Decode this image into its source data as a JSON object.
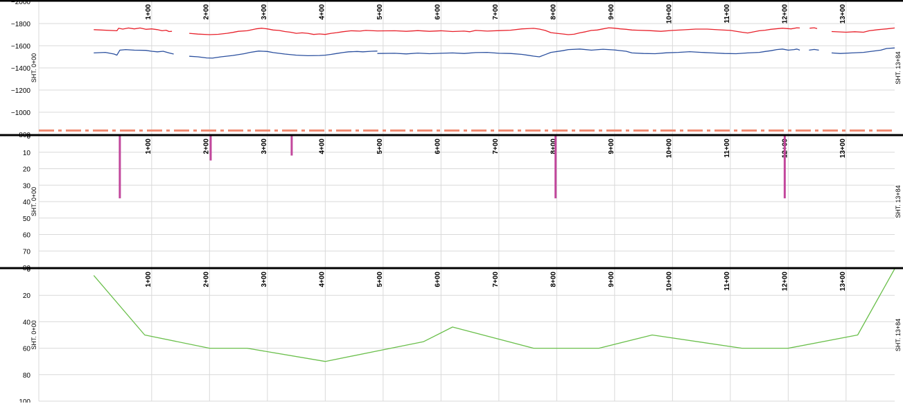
{
  "colors": {
    "background": "#ffffff",
    "grid": "#d9d9d9",
    "separator": "#000000",
    "axis_text": "#000000",
    "series_upper": "#e8202a",
    "series_lower": "#2a4f9e",
    "reference_line": "#f08a70",
    "impulse": "#c2479c",
    "profile": "#6abf4b"
  },
  "stations": {
    "ticks": [
      100,
      200,
      300,
      400,
      500,
      600,
      700,
      800,
      900,
      1000,
      1100,
      1200,
      1300
    ],
    "labels": [
      "1+00",
      "2+00",
      "3+00",
      "4+00",
      "5+00",
      "6+00",
      "7+00",
      "8+00",
      "9+00",
      "10+00",
      "11+00",
      "12+00",
      "13+00"
    ],
    "start_label": "SHT. 0+00",
    "end_label": "SHT. 13+84"
  },
  "chart_data": [
    {
      "type": "line",
      "ylim": [
        -2000,
        -800
      ],
      "y_ticks": [
        -2000,
        -1800,
        -1600,
        -1400,
        -1200,
        -1000,
        -800
      ],
      "y_tick_labels": [
        "−2000",
        "−1800",
        "−1600",
        "−1400",
        "−1200",
        "−1000",
        "−800"
      ],
      "xlim": [
        -95,
        1384
      ],
      "series": [
        {
          "key": "upper",
          "color": "#e8202a",
          "points": [
            [
              0,
              -1745
            ],
            [
              40,
              -1735
            ],
            [
              43,
              -1758
            ],
            [
              50,
              -1750
            ],
            [
              60,
              -1760
            ],
            [
              70,
              -1752
            ],
            [
              80,
              -1760
            ],
            [
              90,
              -1748
            ],
            [
              100,
              -1752
            ],
            [
              110,
              -1745
            ],
            [
              118,
              -1735
            ],
            [
              125,
              -1740
            ],
            [
              130,
              -1728
            ],
            [
              135,
              -1730
            ],
            [
              null,
              null
            ],
            [
              165,
              -1712
            ],
            [
              180,
              -1705
            ],
            [
              200,
              -1700
            ],
            [
              215,
              -1703
            ],
            [
              230,
              -1712
            ],
            [
              240,
              -1720
            ],
            [
              250,
              -1730
            ],
            [
              265,
              -1735
            ],
            [
              280,
              -1752
            ],
            [
              290,
              -1758
            ],
            [
              300,
              -1752
            ],
            [
              310,
              -1742
            ],
            [
              320,
              -1738
            ],
            [
              330,
              -1728
            ],
            [
              340,
              -1722
            ],
            [
              350,
              -1712
            ],
            [
              360,
              -1716
            ],
            [
              370,
              -1712
            ],
            [
              380,
              -1702
            ],
            [
              390,
              -1706
            ],
            [
              400,
              -1702
            ],
            [
              410,
              -1712
            ],
            [
              420,
              -1718
            ],
            [
              430,
              -1726
            ],
            [
              445,
              -1735
            ],
            [
              460,
              -1732
            ],
            [
              470,
              -1738
            ],
            [
              490,
              -1734
            ],
            [
              null,
              null
            ],
            [
              490,
              -1734
            ],
            [
              520,
              -1735
            ],
            [
              540,
              -1730
            ],
            [
              560,
              -1736
            ],
            [
              580,
              -1730
            ],
            [
              600,
              -1735
            ],
            [
              620,
              -1728
            ],
            [
              640,
              -1732
            ],
            [
              650,
              -1726
            ],
            [
              660,
              -1738
            ],
            [
              680,
              -1732
            ],
            [
              700,
              -1736
            ],
            [
              720,
              -1740
            ],
            [
              740,
              -1752
            ],
            [
              760,
              -1757
            ],
            [
              770,
              -1750
            ],
            [
              780,
              -1738
            ],
            [
              790,
              -1718
            ],
            [
              800,
              -1712
            ],
            [
              810,
              -1706
            ],
            [
              820,
              -1700
            ],
            [
              830,
              -1704
            ],
            [
              840,
              -1716
            ],
            [
              850,
              -1726
            ],
            [
              860,
              -1738
            ],
            [
              870,
              -1742
            ],
            [
              880,
              -1752
            ],
            [
              890,
              -1762
            ],
            [
              900,
              -1758
            ],
            [
              910,
              -1752
            ],
            [
              920,
              -1748
            ],
            [
              930,
              -1742
            ],
            [
              940,
              -1740
            ],
            [
              960,
              -1736
            ],
            [
              980,
              -1730
            ],
            [
              1000,
              -1738
            ],
            [
              1020,
              -1744
            ],
            [
              1040,
              -1750
            ],
            [
              1060,
              -1750
            ],
            [
              1080,
              -1744
            ],
            [
              1100,
              -1738
            ],
            [
              1120,
              -1722
            ],
            [
              1130,
              -1715
            ],
            [
              1140,
              -1725
            ],
            [
              1150,
              -1735
            ],
            [
              1160,
              -1740
            ],
            [
              1170,
              -1748
            ],
            [
              1190,
              -1758
            ],
            [
              1205,
              -1752
            ],
            [
              1215,
              -1762
            ],
            [
              1220,
              -1760
            ],
            [
              null,
              null
            ],
            [
              1237,
              -1758
            ],
            [
              1245,
              -1762
            ],
            [
              1250,
              -1755
            ],
            [
              null,
              null
            ],
            [
              1275,
              -1728
            ],
            [
              1300,
              -1722
            ],
            [
              1315,
              -1726
            ],
            [
              1330,
              -1722
            ],
            [
              1340,
              -1735
            ],
            [
              1355,
              -1745
            ],
            [
              1370,
              -1752
            ],
            [
              1384,
              -1760
            ]
          ]
        },
        {
          "key": "lower",
          "color": "#2a4f9e",
          "points": [
            [
              0,
              -1535
            ],
            [
              20,
              -1540
            ],
            [
              35,
              -1525
            ],
            [
              40,
              -1515
            ],
            [
              45,
              -1560
            ],
            [
              55,
              -1565
            ],
            [
              70,
              -1560
            ],
            [
              90,
              -1558
            ],
            [
              100,
              -1550
            ],
            [
              110,
              -1545
            ],
            [
              120,
              -1550
            ],
            [
              130,
              -1535
            ],
            [
              138,
              -1525
            ],
            [
              null,
              null
            ],
            [
              165,
              -1505
            ],
            [
              180,
              -1500
            ],
            [
              195,
              -1490
            ],
            [
              205,
              -1488
            ],
            [
              220,
              -1500
            ],
            [
              240,
              -1512
            ],
            [
              260,
              -1528
            ],
            [
              270,
              -1540
            ],
            [
              285,
              -1552
            ],
            [
              300,
              -1548
            ],
            [
              310,
              -1538
            ],
            [
              330,
              -1525
            ],
            [
              350,
              -1515
            ],
            [
              370,
              -1510
            ],
            [
              390,
              -1512
            ],
            [
              400,
              -1515
            ],
            [
              410,
              -1522
            ],
            [
              420,
              -1530
            ],
            [
              430,
              -1538
            ],
            [
              440,
              -1545
            ],
            [
              455,
              -1548
            ],
            [
              465,
              -1545
            ],
            [
              480,
              -1550
            ],
            [
              490,
              -1552
            ],
            [
              null,
              null
            ],
            [
              490,
              -1530
            ],
            [
              520,
              -1532
            ],
            [
              540,
              -1526
            ],
            [
              560,
              -1534
            ],
            [
              580,
              -1528
            ],
            [
              600,
              -1532
            ],
            [
              620,
              -1535
            ],
            [
              640,
              -1530
            ],
            [
              660,
              -1538
            ],
            [
              680,
              -1540
            ],
            [
              700,
              -1532
            ],
            [
              720,
              -1530
            ],
            [
              740,
              -1522
            ],
            [
              760,
              -1506
            ],
            [
              770,
              -1500
            ],
            [
              780,
              -1520
            ],
            [
              790,
              -1540
            ],
            [
              810,
              -1555
            ],
            [
              820,
              -1565
            ],
            [
              840,
              -1570
            ],
            [
              860,
              -1560
            ],
            [
              880,
              -1568
            ],
            [
              900,
              -1562
            ],
            [
              920,
              -1550
            ],
            [
              930,
              -1535
            ],
            [
              950,
              -1530
            ],
            [
              970,
              -1528
            ],
            [
              990,
              -1536
            ],
            [
              1010,
              -1540
            ],
            [
              1030,
              -1546
            ],
            [
              1050,
              -1540
            ],
            [
              1070,
              -1535
            ],
            [
              1090,
              -1530
            ],
            [
              1110,
              -1528
            ],
            [
              1130,
              -1535
            ],
            [
              1150,
              -1540
            ],
            [
              1160,
              -1548
            ],
            [
              1170,
              -1555
            ],
            [
              1180,
              -1565
            ],
            [
              1190,
              -1570
            ],
            [
              1200,
              -1560
            ],
            [
              1210,
              -1565
            ],
            [
              1215,
              -1570
            ],
            [
              1220,
              -1560
            ],
            [
              null,
              null
            ],
            [
              1236,
              -1560
            ],
            [
              1245,
              -1566
            ],
            [
              1253,
              -1560
            ],
            [
              null,
              null
            ],
            [
              1275,
              -1535
            ],
            [
              1290,
              -1530
            ],
            [
              1310,
              -1535
            ],
            [
              1330,
              -1540
            ],
            [
              1345,
              -1550
            ],
            [
              1360,
              -1560
            ],
            [
              1370,
              -1575
            ],
            [
              1384,
              -1580
            ]
          ]
        }
      ],
      "reference_lines": [
        {
          "y": -835,
          "color": "#f08a70",
          "style": "dash-dot"
        }
      ]
    },
    {
      "type": "bar",
      "ylim": [
        0,
        80
      ],
      "y_ticks": [
        0,
        10,
        20,
        30,
        40,
        50,
        60,
        70,
        80
      ],
      "y_tick_labels": [
        "0",
        "10",
        "20",
        "30",
        "40",
        "50",
        "60",
        "70",
        "80"
      ],
      "xlim": [
        -95,
        1384
      ],
      "bars": [
        {
          "x": 45,
          "value": 38
        },
        {
          "x": 202,
          "value": 15
        },
        {
          "x": 342,
          "value": 12
        },
        {
          "x": 798,
          "value": 38
        },
        {
          "x": 1194,
          "value": 38
        }
      ]
    },
    {
      "type": "line",
      "ylim": [
        0,
        100
      ],
      "y_inverted": true,
      "y_ticks": [
        0,
        20,
        40,
        60,
        80,
        100
      ],
      "y_tick_labels": [
        "0",
        "20",
        "40",
        "60",
        "80",
        "100"
      ],
      "xlim": [
        -95,
        1384
      ],
      "series": [
        {
          "key": "profile",
          "color": "#6abf4b",
          "points": [
            [
              0,
              5
            ],
            [
              88,
              50
            ],
            [
              200,
              60
            ],
            [
              265,
              60
            ],
            [
              400,
              70
            ],
            [
              570,
              55
            ],
            [
              620,
              44
            ],
            [
              760,
              60
            ],
            [
              873,
              60
            ],
            [
              965,
              50
            ],
            [
              1120,
              60
            ],
            [
              1200,
              60
            ],
            [
              1320,
              50
            ],
            [
              1384,
              0
            ]
          ]
        }
      ]
    }
  ]
}
